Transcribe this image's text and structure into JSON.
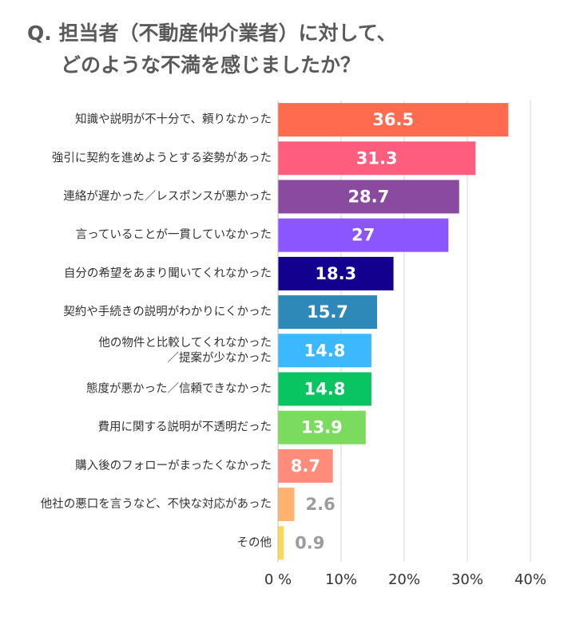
{
  "title": {
    "line1": "Q. 担当者（不動産仲介業者）に対して、",
    "line2": "どのような不満を感じましたか？"
  },
  "chart_data": {
    "type": "bar",
    "orientation": "horizontal",
    "categories": [
      [
        "知識や説明が不十分で、頼りなかった"
      ],
      [
        "強引に契約を進めようとする姿勢があった"
      ],
      [
        "連絡が遅かった／レスポンスが悪かった"
      ],
      [
        "言っていることが一貫していなかった"
      ],
      [
        "自分の希望をあまり聞いてくれなかった"
      ],
      [
        "契約や手続きの説明がわかりにくかった"
      ],
      [
        "他の物件と比較してくれなかった",
        "／提案が少なかった"
      ],
      [
        "態度が悪かった／信頼できなかった"
      ],
      [
        "費用に関する説明が不透明だった"
      ],
      [
        "購入後のフォローがまったくなかった"
      ],
      [
        "他社の悪口を言うなど、不快な対応があった"
      ],
      [
        "その他"
      ]
    ],
    "values": [
      36.5,
      31.3,
      28.7,
      27,
      18.3,
      15.7,
      14.8,
      14.8,
      13.9,
      8.7,
      2.6,
      0.9
    ],
    "value_labels": [
      "36.5",
      "31.3",
      "28.7",
      "27",
      "18.3",
      "15.7",
      "14.8",
      "14.8",
      "13.9",
      "8.7",
      "2.6",
      "0.9"
    ],
    "colors": [
      "#ff6b4e",
      "#ff5d7d",
      "#8a4aa0",
      "#8b55ff",
      "#13008f",
      "#2e89b8",
      "#3bb8ff",
      "#08c561",
      "#7bdb5e",
      "#ff8c7a",
      "#ffb36e",
      "#ffd84d"
    ],
    "label_inside": [
      true,
      true,
      true,
      true,
      true,
      true,
      true,
      true,
      true,
      true,
      false,
      false
    ],
    "xlim": [
      0,
      40
    ],
    "xticks": [
      0,
      10,
      20,
      30,
      40
    ],
    "xtick_labels": [
      "0 %",
      "10%",
      "20%",
      "30%",
      "40%"
    ],
    "grid": true
  }
}
